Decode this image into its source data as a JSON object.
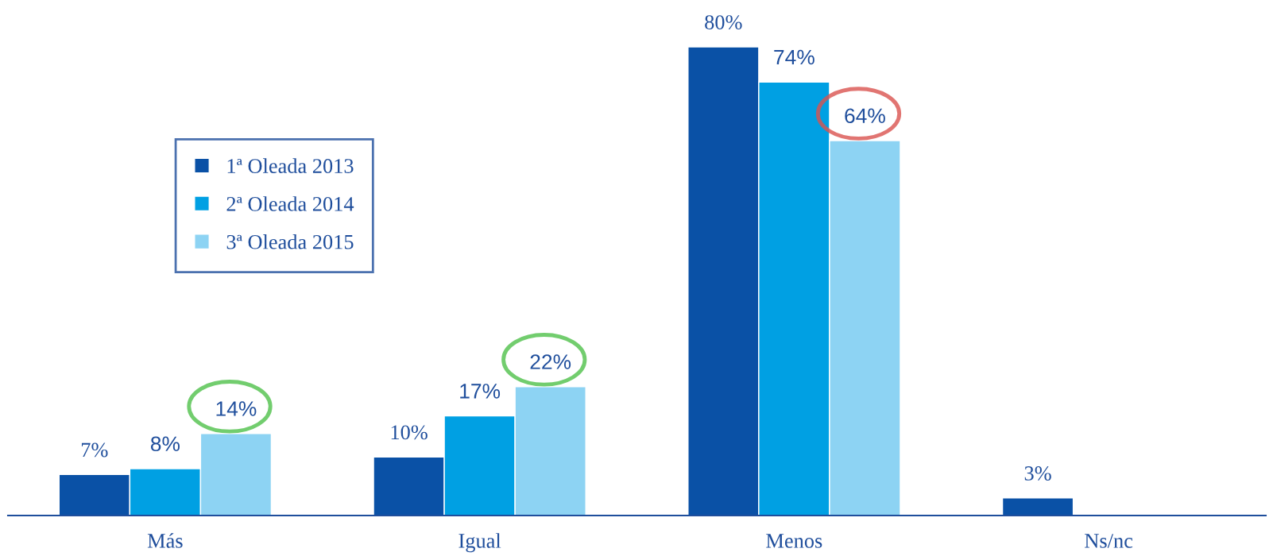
{
  "chart_data": {
    "type": "bar",
    "categories": [
      "Más",
      "Igual",
      "Menos",
      "Ns/nc"
    ],
    "series": [
      {
        "name": "1ª Oleada 2013",
        "color": "#0a51a6",
        "values": [
          7,
          10,
          80,
          3
        ],
        "value_labels": [
          "7%",
          "10%",
          "80%",
          "3%"
        ]
      },
      {
        "name": "2ª Oleada 2014",
        "color": "#00a0e3",
        "values": [
          8,
          17,
          74,
          null
        ],
        "value_labels": [
          "8%",
          "17%",
          "74%",
          null
        ]
      },
      {
        "name": "3ª Oleada 2015",
        "color": "#8dd3f3",
        "values": [
          14,
          22,
          64,
          null
        ],
        "value_labels": [
          "14%",
          "22%",
          "64%",
          null
        ]
      }
    ],
    "legend": "top left",
    "grid": false
  }
}
